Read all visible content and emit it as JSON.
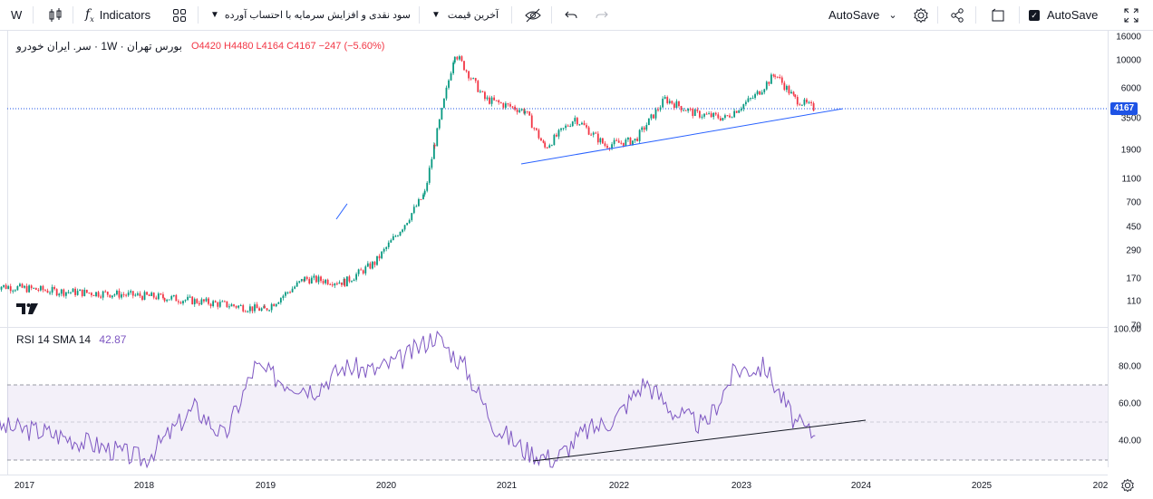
{
  "toolbar": {
    "symbol": "W",
    "indicators_label": "Indicators",
    "template_label": "سود نقدی و افزایش سرمایه با احتساب آورده",
    "price_type_label": "آخرین قیمت",
    "autosave_dropdown_label": "AutoSave",
    "autosave_checkbox_label": "AutoSave"
  },
  "legend": {
    "symbol_text": "بورس تهران · 1W · سر. ایران خودرو",
    "ohlc": "O4420 H4480 L4164 C4167 −247 (−5.60%)"
  },
  "rsi": {
    "label": "RSI 14 SMA 14",
    "value": "42.87"
  },
  "price_axis": {
    "ticks": [
      "16000",
      "10000",
      "6000",
      "3500",
      "1900",
      "1100",
      "700",
      "450",
      "290",
      "170",
      "110",
      "70"
    ],
    "current_price": "4167"
  },
  "rsi_axis": {
    "ticks": [
      "100.00",
      "80.00",
      "60.00",
      "40.00"
    ]
  },
  "time_axis": {
    "ticks": [
      "2017",
      "2018",
      "2019",
      "2020",
      "2021",
      "2022",
      "2023",
      "2024",
      "2025",
      "202"
    ]
  },
  "colors": {
    "up": "#089981",
    "down": "#f23645",
    "rsi_line": "#7e57c2",
    "trendline": "#2962ff",
    "price_label_bg": "#1e53e5"
  },
  "chart_data": [
    {
      "type": "line",
      "title": "",
      "scale": "log",
      "x": [
        "2016-10",
        "2017-04",
        "2017-10",
        "2018-03",
        "2018-09",
        "2019-01",
        "2019-05",
        "2019-09",
        "2019-12",
        "2020-03",
        "2020-05",
        "2020-06",
        "2020-08",
        "2020-11",
        "2021-03",
        "2021-05",
        "2021-08",
        "2021-11",
        "2022-02",
        "2022-05",
        "2022-08",
        "2022-11",
        "2023-02",
        "2023-04",
        "2023-06",
        "2023-08"
      ],
      "series": [
        {
          "values": [
            150,
            135,
            128,
            120,
            105,
            95,
            170,
            160,
            230,
            480,
            850,
            2200,
            12000,
            5000,
            4000,
            2000,
            3500,
            2100,
            2300,
            5000,
            3800,
            3500,
            5300,
            8000,
            5000,
            4167
          ]
        }
      ],
      "ylim": [
        70,
        16000
      ]
    },
    {
      "type": "line",
      "x": [
        "2016-10",
        "2017-03",
        "2017-08",
        "2018-01",
        "2018-06",
        "2018-09",
        "2018-12",
        "2019-03",
        "2019-06",
        "2019-09",
        "2019-12",
        "2020-03",
        "2020-06",
        "2020-09",
        "2020-12",
        "2021-03",
        "2021-06",
        "2021-09",
        "2021-12",
        "2022-03",
        "2022-06",
        "2022-09",
        "2022-12",
        "2023-03",
        "2023-06",
        "2023-08"
      ],
      "series": [
        {
          "name": "RSI 14",
          "values": [
            48,
            45,
            38,
            30,
            58,
            42,
            80,
            72,
            68,
            80,
            78,
            85,
            97,
            80,
            48,
            35,
            30,
            45,
            52,
            72,
            55,
            48,
            78,
            80,
            50,
            42.87
          ]
        }
      ],
      "ylim": [
        20,
        100
      ]
    }
  ]
}
